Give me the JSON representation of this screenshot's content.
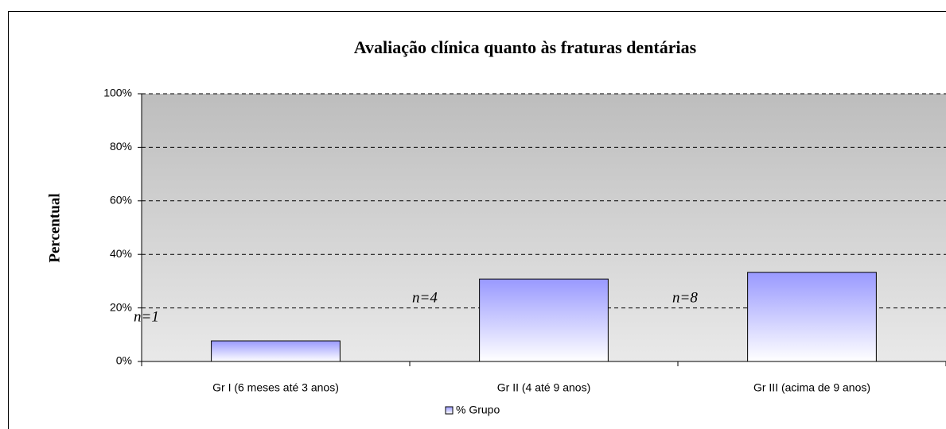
{
  "chart_data": {
    "type": "bar",
    "title": "Avaliação clínica quanto às fraturas dentárias",
    "y_label": "Percentual",
    "categories": [
      "Gr I (6 meses até 3 anos)",
      "Gr II (4 até 9 anos)",
      "Gr III (acima de 9 anos)"
    ],
    "series": [
      {
        "name": "% Grupo",
        "color": "#9999ff",
        "values": [
          7.7,
          30.8,
          33.3
        ]
      }
    ],
    "annotations": [
      "n=1",
      "n=4",
      "n=8"
    ],
    "ylim": [
      0,
      100
    ],
    "yticks": [
      {
        "value": 0,
        "label": "0%"
      },
      {
        "value": 20,
        "label": "20%"
      },
      {
        "value": 40,
        "label": "40%"
      },
      {
        "value": 60,
        "label": "60%"
      },
      {
        "value": 80,
        "label": "80%"
      },
      {
        "value": 100,
        "label": "100%"
      }
    ],
    "grid": true,
    "legend": "bottom"
  }
}
